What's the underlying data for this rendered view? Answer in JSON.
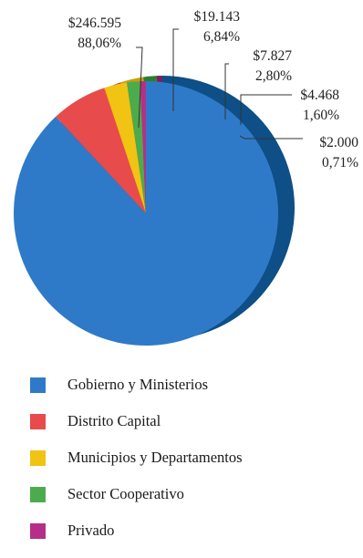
{
  "chart_data": {
    "type": "pie",
    "series": [
      {
        "name": "Gobierno y Ministerios",
        "value": 246595,
        "value_label": "$246.595",
        "percent_label": "88,06%",
        "color": "#2f7ac8",
        "side_color": "#0d4f86"
      },
      {
        "name": "Distrito Capital",
        "value": 19143,
        "value_label": "$19.143",
        "percent_label": "6,84%",
        "color": "#e84b4b",
        "side_color": "#b43a3a"
      },
      {
        "name": "Municipios y Departamentos",
        "value": 7827,
        "value_label": "$7.827",
        "percent_label": "2,80%",
        "color": "#f1c312",
        "side_color": "#c99f0b"
      },
      {
        "name": "Sector Cooperativo",
        "value": 4468,
        "value_label": "$4.468",
        "percent_label": "1,60%",
        "color": "#4cab4c",
        "side_color": "#2f7d2f"
      },
      {
        "name": "Privado",
        "value": 2000,
        "value_label": "$2.000",
        "percent_label": "0,71%",
        "color": "#b52f8a",
        "side_color": "#7c1f5e"
      }
    ],
    "legend_position": "bottom"
  }
}
